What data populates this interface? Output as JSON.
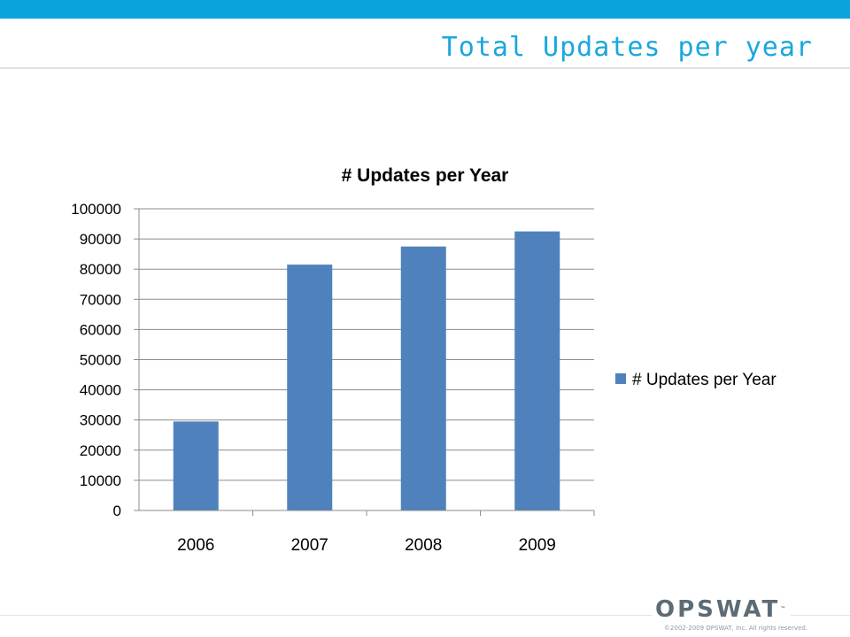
{
  "slide": {
    "title": "Total Updates per year",
    "logo_text": "OPSWAT",
    "logo_tm": "™",
    "copyright": "©2002-2009 OPSWAT, Inc. All rights reserved."
  },
  "colors": {
    "accent": "#0aa3dc",
    "bar": "#4f81bd"
  },
  "chart_data": {
    "type": "bar",
    "title": "# Updates per Year",
    "categories": [
      "2006",
      "2007",
      "2008",
      "2009"
    ],
    "series": [
      {
        "name": "# Updates per Year",
        "values": [
          29500,
          81500,
          87500,
          92500
        ]
      }
    ],
    "ylim": [
      0,
      100000
    ],
    "yticks": [
      "0",
      "10000",
      "20000",
      "30000",
      "40000",
      "50000",
      "60000",
      "70000",
      "80000",
      "90000",
      "100000"
    ],
    "grid": true,
    "legend": "right"
  }
}
